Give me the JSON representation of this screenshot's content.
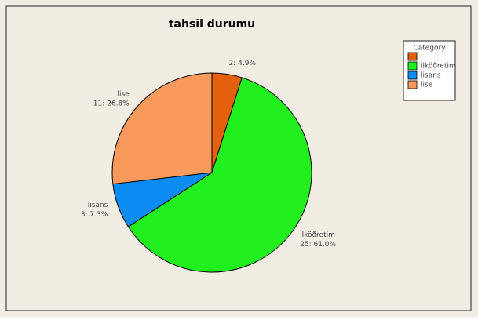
{
  "chart_data": {
    "type": "pie",
    "title": "tahsil durumu",
    "categories": [
      null,
      "ilköðretim",
      "lisans",
      "lise"
    ],
    "values": [
      2,
      25,
      3,
      11
    ],
    "value_labels": [
      "2: 4.9%",
      "25: 61.0%",
      "3: 7.3%",
      "11: 26.8%"
    ],
    "colors": [
      "#e5600c",
      "#22f01e",
      "#0a8cf0",
      "#f89a5c"
    ],
    "legend_title": "Category",
    "legend": "upper right"
  }
}
